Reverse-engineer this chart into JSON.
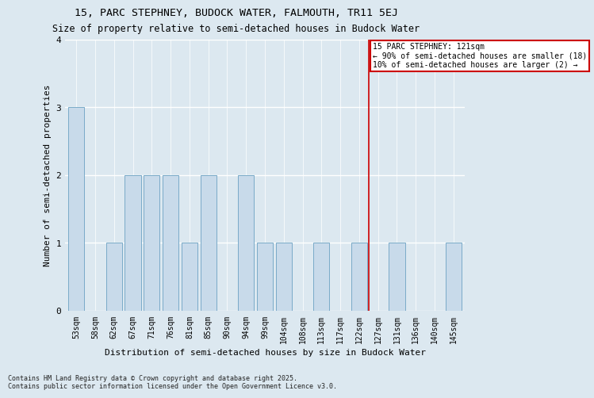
{
  "title1": "15, PARC STEPHNEY, BUDOCK WATER, FALMOUTH, TR11 5EJ",
  "title2": "Size of property relative to semi-detached houses in Budock Water",
  "xlabel": "Distribution of semi-detached houses by size in Budock Water",
  "ylabel": "Number of semi-detached properties",
  "categories": [
    "53sqm",
    "58sqm",
    "62sqm",
    "67sqm",
    "71sqm",
    "76sqm",
    "81sqm",
    "85sqm",
    "90sqm",
    "94sqm",
    "99sqm",
    "104sqm",
    "108sqm",
    "113sqm",
    "117sqm",
    "122sqm",
    "127sqm",
    "131sqm",
    "136sqm",
    "140sqm",
    "145sqm"
  ],
  "values": [
    3,
    0,
    1,
    2,
    2,
    2,
    1,
    2,
    0,
    2,
    1,
    1,
    0,
    1,
    0,
    1,
    0,
    1,
    0,
    0,
    1
  ],
  "bar_color": "#c8daea",
  "bar_edge_color": "#7aaac8",
  "vline_x": 15.5,
  "annotation_title": "15 PARC STEPHNEY: 121sqm",
  "annotation_line1": "← 90% of semi-detached houses are smaller (18)",
  "annotation_line2": "10% of semi-detached houses are larger (2) →",
  "annotation_box_color": "#ffffff",
  "annotation_box_edge": "#cc0000",
  "vline_color": "#cc0000",
  "ylim": [
    0,
    4
  ],
  "yticks": [
    0,
    1,
    2,
    3,
    4
  ],
  "footer1": "Contains HM Land Registry data © Crown copyright and database right 2025.",
  "footer2": "Contains public sector information licensed under the Open Government Licence v3.0.",
  "bg_color": "#dce8f0",
  "title_fontsize": 9.5,
  "subtitle_fontsize": 8.5,
  "axis_label_fontsize": 8,
  "tick_fontsize": 7,
  "footer_fontsize": 6,
  "annotation_fontsize": 7
}
